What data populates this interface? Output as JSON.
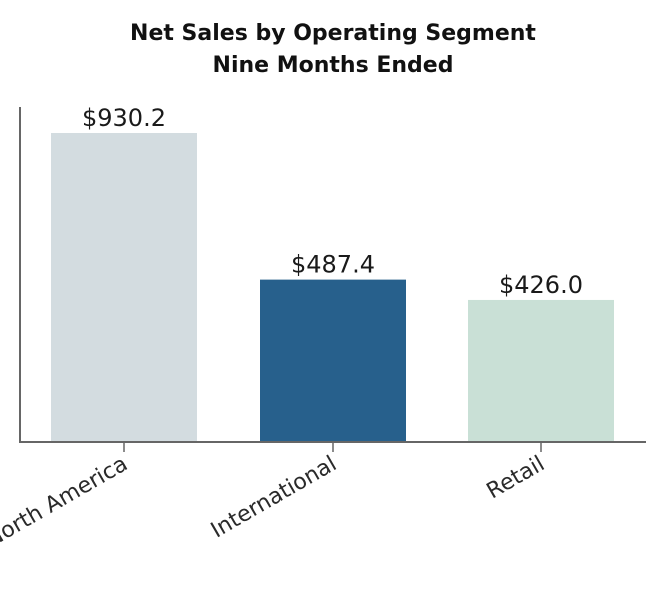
{
  "chart_data": {
    "type": "bar",
    "title": "Net Sales by Operating Segment",
    "subtitle": "Nine Months Ended",
    "categories": [
      "North America",
      "International",
      "Retail"
    ],
    "values": [
      930.2,
      487.4,
      426.0
    ],
    "data_labels": [
      "$930.2",
      "$487.4",
      "$426.0"
    ],
    "bar_colors": [
      "#d3dce0",
      "#27608c",
      "#c9e0d6"
    ],
    "ylim": [
      0,
      1000
    ],
    "xlabel": "",
    "ylabel": "",
    "grid": false,
    "legend": "none"
  }
}
